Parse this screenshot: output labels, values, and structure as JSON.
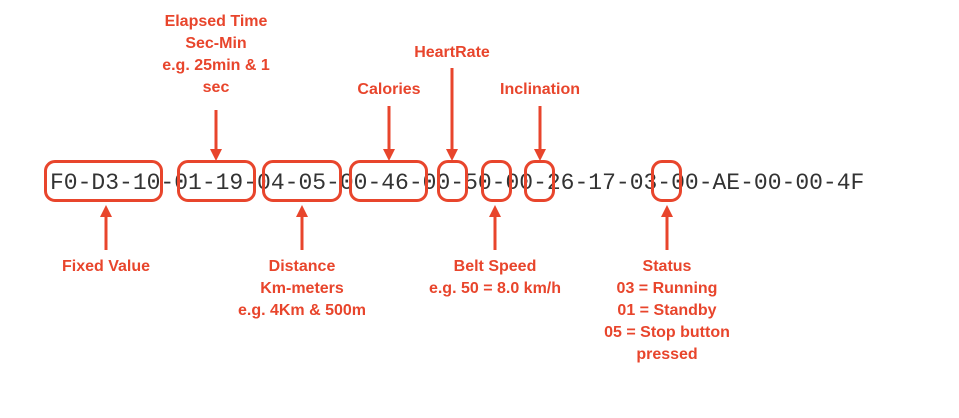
{
  "hex_string": "F0-D3-10-01-19-04-05-00-46-00-50-00-26-17-03-00-AE-00-00-4F",
  "annotations": {
    "elapsed_time": {
      "lines": [
        "Elapsed Time",
        "Sec-Min",
        "e.g. 25min & 1",
        "sec"
      ]
    },
    "calories": {
      "lines": [
        "Calories"
      ]
    },
    "heart_rate": {
      "lines": [
        "HeartRate"
      ]
    },
    "inclination": {
      "lines": [
        "Inclination"
      ]
    },
    "fixed_value": {
      "lines": [
        "Fixed Value"
      ]
    },
    "distance": {
      "lines": [
        "Distance",
        "Km-meters",
        "e.g. 4Km & 500m"
      ]
    },
    "belt_speed": {
      "lines": [
        "Belt Speed",
        "e.g. 50 = 8.0 km/h"
      ]
    },
    "status": {
      "lines": [
        "Status",
        "03 = Running",
        "01 = Standby",
        "05 = Stop button",
        "pressed"
      ]
    }
  },
  "accent_color": "#e8452c",
  "text_color": "#333333"
}
